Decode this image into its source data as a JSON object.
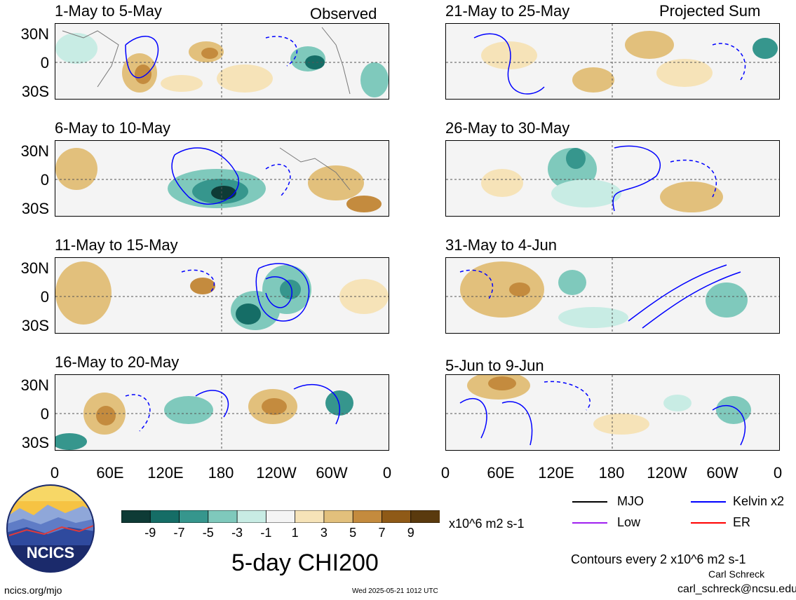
{
  "header": {
    "observed_label": "Observed",
    "projected_label": "Projected Sum"
  },
  "panels_left": [
    {
      "title": "1-May to 5-May"
    },
    {
      "title": "6-May to 10-May"
    },
    {
      "title": "11-May to 15-May"
    },
    {
      "title": "16-May to 20-May"
    }
  ],
  "panels_right": [
    {
      "title": "21-May to 25-May"
    },
    {
      "title": "26-May to 30-May"
    },
    {
      "title": "31-May to 4-Jun"
    },
    {
      "title": "5-Jun to 9-Jun"
    }
  ],
  "axes": {
    "lat_labels": [
      "30N",
      "0",
      "30S"
    ],
    "lon_labels": [
      "0",
      "60E",
      "120E",
      "180",
      "120W",
      "60W",
      "0"
    ]
  },
  "colorbar": {
    "labels": [
      "-9",
      "-7",
      "-5",
      "-3",
      "-1",
      "1",
      "3",
      "5",
      "7",
      "9"
    ],
    "colors": [
      "#0e3b36",
      "#156d66",
      "#36968d",
      "#7fc9bc",
      "#c8ece4",
      "#f4f4f4",
      "#f6e3b8",
      "#e2c07c",
      "#c48b3e",
      "#8f5a17",
      "#5a3a0e"
    ],
    "unit": "x10^6 m2 s-1"
  },
  "legend": {
    "mjo": "MJO",
    "kelvin": "Kelvin x2",
    "low": "Low",
    "er": "ER",
    "mjo_color": "#000000",
    "kelvin_color": "#0000ff",
    "low_color": "#a020f0",
    "er_color": "#ff0000"
  },
  "main_title": "5-day CHI200",
  "contour_note": "Contours every 2 x10^6 m2 s-1",
  "footer": {
    "site": "ncics.org/mjo",
    "timestamp": "Wed 2025-05-21 1012 UTC",
    "author": "Carl Schreck",
    "email": "carl_schreck@ncsu.edu"
  },
  "logo": {
    "text": "NCICS"
  }
}
